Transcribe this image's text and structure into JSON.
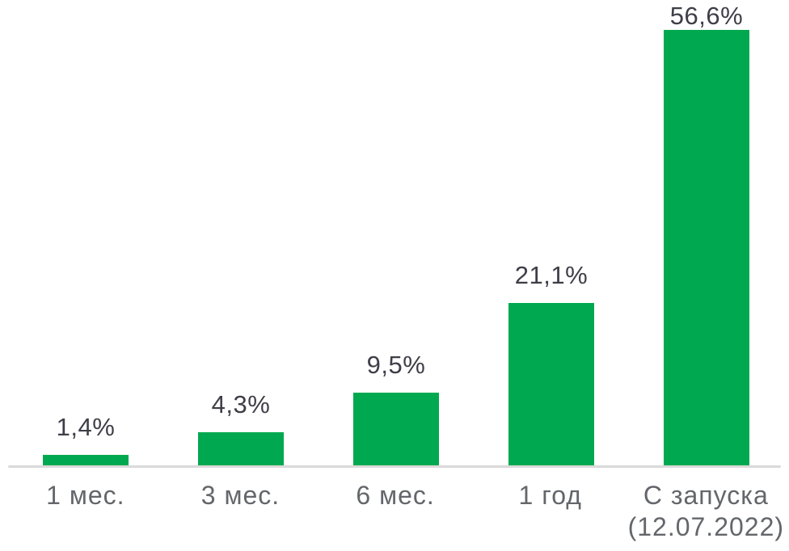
{
  "chart_data": {
    "type": "bar",
    "title": "",
    "xlabel": "",
    "ylabel": "",
    "categories": [
      "1 мес.",
      "3 мес.",
      "6 мес.",
      "1 год",
      "С запуска"
    ],
    "category_sublabels": [
      "",
      "",
      "",
      "",
      "(12.07.2022)"
    ],
    "values": [
      1.4,
      4.3,
      9.5,
      21.1,
      56.6
    ],
    "value_labels": [
      "1,4%",
      "4,3%",
      "9,5%",
      "21,1%",
      "56,6%"
    ],
    "ylim": [
      0,
      60
    ],
    "grid": "off",
    "legend": "none",
    "bar_color": "#00A94F",
    "value_label_color": "#3E3E48",
    "axis_label_color": "#63666A",
    "axis_line_color": "#DADADA"
  }
}
